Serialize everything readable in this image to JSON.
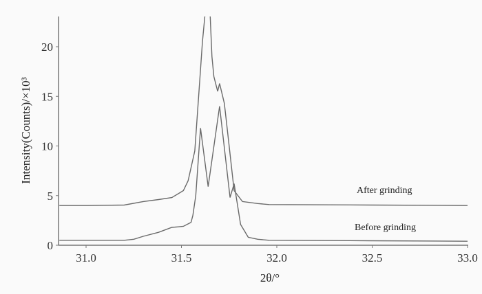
{
  "chart_data": {
    "type": "line",
    "title": "",
    "xlabel": "2θ/°",
    "ylabel": "Intensity(Counts)/×10³",
    "xlim": [
      30.86,
      33.0
    ],
    "ylim": [
      0,
      23
    ],
    "xticks": [
      "31.0",
      "31.5",
      "32.0",
      "32.5",
      "33.0"
    ],
    "yticks": [
      "0",
      "5",
      "10",
      "15",
      "20"
    ],
    "grid": false,
    "series": [
      {
        "name": "After grinding",
        "x": [
          30.86,
          31.0,
          31.2,
          31.3,
          31.38,
          31.45,
          31.51,
          31.535,
          31.57,
          31.596,
          31.61,
          31.625,
          31.65,
          31.66,
          31.67,
          31.69,
          31.7,
          31.725,
          31.75,
          31.776,
          31.82,
          31.9,
          31.96,
          32.5,
          33.0
        ],
        "y": [
          4.0,
          4.0,
          4.05,
          4.4,
          4.6,
          4.8,
          5.5,
          6.5,
          9.5,
          16.6,
          20.5,
          23.5,
          23.5,
          19.0,
          17.0,
          15.5,
          16.3,
          14.3,
          10.0,
          5.5,
          4.4,
          4.2,
          4.1,
          4.05,
          4.0
        ]
      },
      {
        "name": "Before grinding",
        "x": [
          30.86,
          31.0,
          31.2,
          31.25,
          31.3,
          31.38,
          31.45,
          31.48,
          31.51,
          31.55,
          31.56,
          31.575,
          31.6,
          31.64,
          31.7,
          31.755,
          31.776,
          31.81,
          31.85,
          31.9,
          31.96,
          32.5,
          33.0
        ],
        "y": [
          0.5,
          0.5,
          0.5,
          0.6,
          0.9,
          1.3,
          1.8,
          1.85,
          1.9,
          2.3,
          3.0,
          5.0,
          11.8,
          5.9,
          14.0,
          4.8,
          6.2,
          2.1,
          0.8,
          0.6,
          0.5,
          0.45,
          0.4
        ]
      }
    ]
  }
}
